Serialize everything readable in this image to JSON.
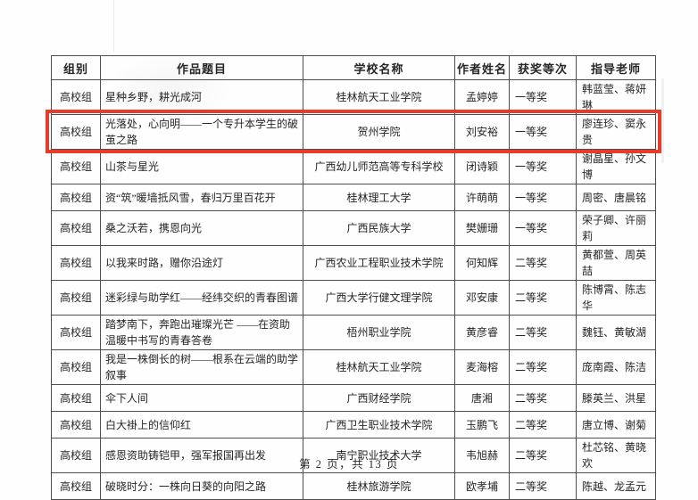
{
  "document": {
    "footer": "第 2 页，共 13 页"
  },
  "table": {
    "highlight_color": "#e83b2c",
    "columns": [
      "组别",
      "作品题目",
      "学校名称",
      "作者姓名",
      "获奖等次",
      "指导老师"
    ],
    "rows": [
      {
        "group": "高校组",
        "title": "星种乡野，耕光成河",
        "school": "桂林航天工业学院",
        "author": "孟婷婷",
        "award": "一等奖",
        "teachers": "韩蓝莹、蒋妍琳",
        "highlighted": false
      },
      {
        "group": "高校组",
        "title": "光落处，心向明——一个专升本学生的破茧之路",
        "school": "贺州学院",
        "author": "刘安裕",
        "award": "一等奖",
        "teachers": "廖连珍、窦永贵",
        "highlighted": true
      },
      {
        "group": "高校组",
        "title": "山茶与星光",
        "school": "广西幼儿师范高等专科学校",
        "author": "闭诗颖",
        "award": "一等奖",
        "teachers": "谢晶星、孙文博",
        "highlighted": false
      },
      {
        "group": "高校组",
        "title": "资“筑”暖墙抵风雪，春归万里百花开",
        "school": "桂林理工大学",
        "author": "许萌萌",
        "award": "一等奖",
        "teachers": "周密、唐晨铭",
        "highlighted": false
      },
      {
        "group": "高校组",
        "title": "桑之沃若，携恩向光",
        "school": "广西民族大学",
        "author": "樊姗珊",
        "award": "一等奖",
        "teachers": "荣子卿、许丽莉",
        "highlighted": false
      },
      {
        "group": "高校组",
        "title": "以我来时路，赠你沿途灯",
        "school": "广西农业工程职业技术学院",
        "author": "何知辉",
        "award": "二等奖",
        "teachers": "黄都萱、周英喆",
        "highlighted": false
      },
      {
        "group": "高校组",
        "title": "迷彩绿与助学红——经纬交织的青春图谱",
        "school": "广西大学行健文理学院",
        "author": "邓安康",
        "award": "二等奖",
        "teachers": "陈博霄、陈志华",
        "highlighted": false
      },
      {
        "group": "高校组",
        "title": "踏梦南下，奔跑出璀璨光芒 ——在资助温暖中书写的青春答卷",
        "school": "梧州职业学院",
        "author": "黄彦睿",
        "award": "二等奖",
        "teachers": "魏钰、黄敏湖",
        "highlighted": false
      },
      {
        "group": "高校组",
        "title": "我是一株倒长的树——根系在云端的助学叙事",
        "school": "桂林航天工业学院",
        "author": "麦海榕",
        "award": "二等奖",
        "teachers": "庞南霞、陈洁",
        "highlighted": false
      },
      {
        "group": "高校组",
        "title": "伞下人间",
        "school": "广西财经学院",
        "author": "唐湘",
        "award": "二等奖",
        "teachers": "滕英兰、洪星",
        "highlighted": false
      },
      {
        "group": "高校组",
        "title": "白大褂上的信仰红",
        "school": "广西卫生职业技术学院",
        "author": "玉鹏飞",
        "award": "二等奖",
        "teachers": "唐立博、谢菊",
        "highlighted": false
      },
      {
        "group": "高校组",
        "title": "感恩资助铸铠甲，强军报国再出发",
        "school": "南宁职业技术大学",
        "author": "韦旭赫",
        "award": "二等奖",
        "teachers": "杜芯铭、黄晓欢",
        "highlighted": false
      },
      {
        "group": "高校组",
        "title": "破晓时分：一株向日葵的向阳之路",
        "school": "桂林旅游学院",
        "author": "欧孝埔",
        "award": "二等奖",
        "teachers": "陈越、龙孟元",
        "highlighted": false
      }
    ]
  }
}
